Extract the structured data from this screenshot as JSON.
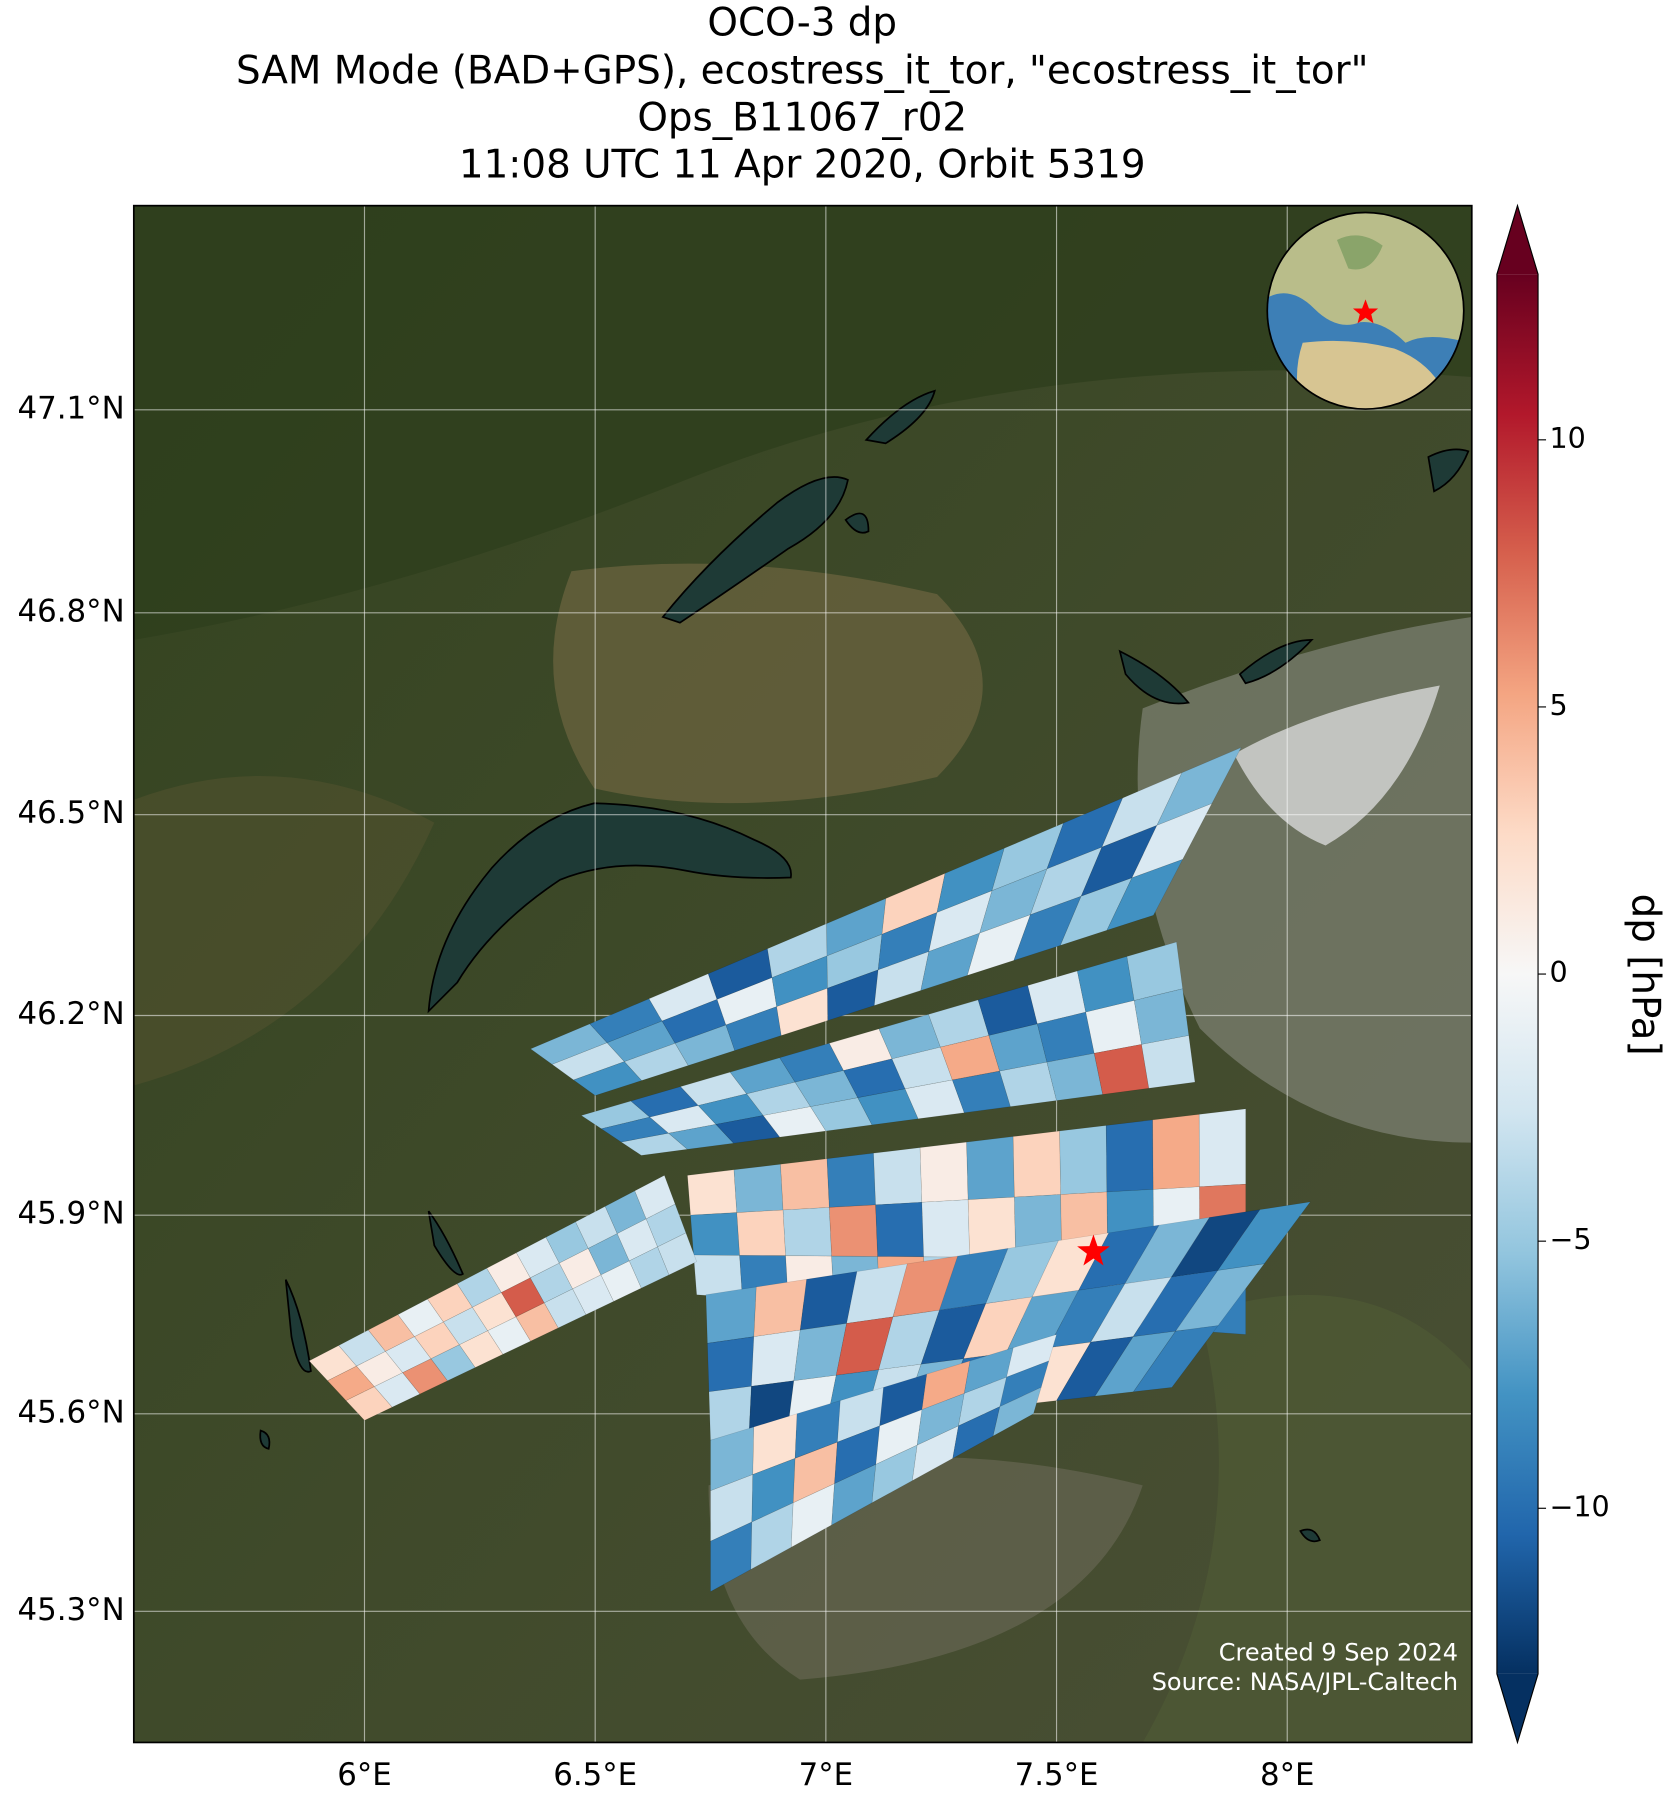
{
  "chart_data": {
    "type": "map",
    "title": "OCO-3 dp",
    "subtitle": [
      "SAM Mode (BAD+GPS), ecostress_it_tor, \"ecostress_it_tor\"",
      "Ops_B11067_r02",
      "11:08 UTC 11 Apr 2020, Orbit 5319"
    ],
    "xlim": [
      5.5,
      8.4
    ],
    "ylim": [
      45.1,
      47.4
    ],
    "xticks": [
      {
        "value": 6,
        "label": "6°E"
      },
      {
        "value": 6.5,
        "label": "6.5°E"
      },
      {
        "value": 7,
        "label": "7°E"
      },
      {
        "value": 7.5,
        "label": "7.5°E"
      },
      {
        "value": 8,
        "label": "8°E"
      }
    ],
    "yticks": [
      {
        "value": 45.3,
        "label": "45.3°N"
      },
      {
        "value": 45.6,
        "label": "45.6°N"
      },
      {
        "value": 45.9,
        "label": "45.9°N"
      },
      {
        "value": 46.2,
        "label": "46.2°N"
      },
      {
        "value": 46.5,
        "label": "46.5°N"
      },
      {
        "value": 46.8,
        "label": "46.8°N"
      },
      {
        "value": 47.1,
        "label": "47.1°N"
      }
    ],
    "grid": true,
    "projection": "mercator",
    "colorbar": {
      "label": "dp [hPa]",
      "cmap": "RdBu_r",
      "extend": "both",
      "lim": [
        -13.1,
        13.1
      ],
      "ticks": [
        {
          "value": -10,
          "label": "−10"
        },
        {
          "value": -5,
          "label": "−5"
        },
        0,
        5,
        10
      ]
    },
    "target": {
      "lon": 7.58,
      "lat": 45.845,
      "color": "#ff0000"
    },
    "swaths": [
      {
        "corners": [
          [
            6.36,
            46.15
          ],
          [
            7.9,
            46.6
          ],
          [
            7.71,
            46.35
          ],
          [
            6.5,
            46.08
          ]
        ],
        "values": [
          [
            -6,
            -9,
            -2,
            -11,
            -4,
            -7,
            3,
            -8,
            -5,
            -10,
            -3,
            -6
          ],
          [
            -3,
            -7,
            -10,
            -1,
            -8,
            -5,
            -9,
            -2,
            -6,
            -4,
            -11,
            -2
          ],
          [
            -8,
            -4,
            -6,
            -9,
            2,
            -11,
            -3,
            -7,
            -1,
            -9,
            -5,
            -8
          ]
        ]
      },
      {
        "corners": [
          [
            6.47,
            46.05
          ],
          [
            7.76,
            46.31
          ],
          [
            7.8,
            46.1
          ],
          [
            6.6,
            45.99
          ]
        ],
        "values": [
          [
            -5,
            -10,
            -3,
            -7,
            -9,
            1,
            -6,
            -4,
            -11,
            -2,
            -8,
            -5
          ],
          [
            -9,
            -2,
            -8,
            -4,
            -6,
            -10,
            -3,
            5,
            -7,
            -9,
            -1,
            -6
          ],
          [
            -4,
            -7,
            -11,
            -1,
            -5,
            -8,
            -2,
            -9,
            -4,
            -6,
            8,
            -3
          ]
        ]
      },
      {
        "corners": [
          [
            6.7,
            45.96
          ],
          [
            7.91,
            46.06
          ],
          [
            7.91,
            45.72
          ],
          [
            6.72,
            45.78
          ]
        ],
        "values": [
          [
            2,
            -6,
            4,
            -9,
            -3,
            1,
            -7,
            3,
            -5,
            -10,
            5,
            -2
          ],
          [
            -8,
            3,
            -4,
            6,
            -10,
            -2,
            2,
            -6,
            4,
            -8,
            -1,
            7
          ],
          [
            -3,
            -9,
            1,
            -6,
            5,
            -4,
            -11,
            3,
            -7,
            2,
            -5,
            -9
          ]
        ]
      },
      {
        "corners": [
          [
            5.88,
            45.68
          ],
          [
            6.65,
            45.96
          ],
          [
            6.72,
            45.83
          ],
          [
            6.0,
            45.59
          ]
        ],
        "values": [
          [
            2,
            -3,
            4,
            -1,
            3,
            -4,
            1,
            -2,
            -5,
            -3,
            -6,
            -2
          ],
          [
            5,
            1,
            -2,
            3,
            -3,
            2,
            8,
            -4,
            1,
            -6,
            -2,
            -4
          ],
          [
            3,
            -2,
            6,
            -5,
            2,
            -1,
            4,
            -3,
            -2,
            -1,
            -4,
            -3
          ]
        ]
      },
      {
        "corners": [
          [
            6.74,
            45.78
          ],
          [
            8.05,
            45.92
          ],
          [
            7.75,
            45.64
          ],
          [
            6.75,
            45.56
          ]
        ],
        "values": [
          [
            -7,
            4,
            -11,
            -3,
            6,
            -9,
            -5,
            2,
            -10,
            -6,
            -12,
            -8
          ],
          [
            -10,
            -2,
            -6,
            8,
            -4,
            -11,
            3,
            -7,
            -9,
            -3,
            -10,
            -6
          ],
          [
            -4,
            -12,
            -1,
            -8,
            -3,
            -6,
            -10,
            -5,
            2,
            -11,
            -7,
            -9
          ]
        ]
      },
      {
        "corners": [
          [
            6.75,
            45.56
          ],
          [
            7.5,
            45.72
          ],
          [
            7.45,
            45.6
          ],
          [
            6.75,
            45.33
          ]
        ],
        "values": [
          [
            -6,
            2,
            -9,
            -3,
            -11,
            5,
            -7,
            -2
          ],
          [
            -3,
            -8,
            4,
            -10,
            -1,
            -6,
            -4,
            -9
          ],
          [
            -9,
            -4,
            -1,
            -7,
            -5,
            -2,
            -10,
            -6
          ]
        ]
      }
    ],
    "annotations": [
      "Created 9 Sep 2024",
      "Source: NASA/JPL-Caltech"
    ]
  }
}
